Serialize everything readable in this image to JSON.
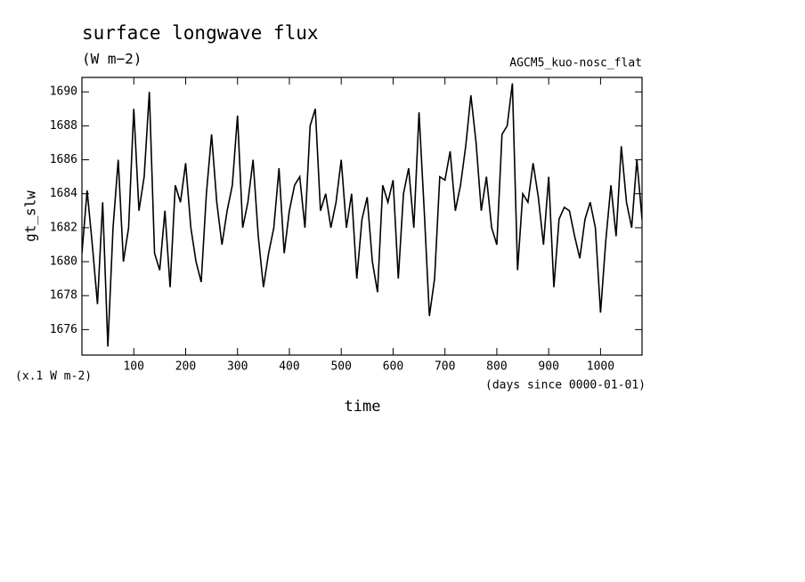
{
  "chart_data": {
    "type": "line",
    "title": "surface longwave flux",
    "subtitle": "(W m−2)",
    "annotation": "AGCM5_kuo-nosc_flat",
    "y_label": "gt_slw",
    "y_unit": "(x.1 W m-2)",
    "x_label": "time",
    "x_unit": "(days since 0000-01-01)",
    "color": "#000000",
    "xlim": [
      0,
      1080
    ],
    "ylim": [
      1674.5,
      1690.85
    ],
    "xticks": [
      100,
      200,
      300,
      400,
      500,
      600,
      700,
      800,
      900,
      1000
    ],
    "yticks": [
      1676,
      1678,
      1680,
      1682,
      1684,
      1686,
      1688,
      1690
    ],
    "x": [
      0,
      10,
      20,
      30,
      40,
      50,
      60,
      70,
      80,
      90,
      100,
      110,
      120,
      130,
      140,
      150,
      160,
      170,
      180,
      190,
      200,
      210,
      220,
      230,
      240,
      250,
      260,
      270,
      280,
      290,
      300,
      310,
      320,
      330,
      340,
      350,
      360,
      370,
      380,
      390,
      400,
      410,
      420,
      430,
      440,
      450,
      460,
      470,
      480,
      490,
      500,
      510,
      520,
      530,
      540,
      550,
      560,
      570,
      580,
      590,
      600,
      610,
      620,
      630,
      640,
      650,
      660,
      670,
      680,
      690,
      700,
      710,
      720,
      730,
      740,
      750,
      760,
      770,
      780,
      790,
      800,
      810,
      820,
      830,
      840,
      850,
      860,
      870,
      880,
      890,
      900,
      910,
      920,
      930,
      940,
      950,
      960,
      970,
      980,
      990,
      1000,
      1010,
      1020,
      1030,
      1040,
      1050,
      1060,
      1070,
      1080
    ],
    "values": [
      1680.5,
      1684.2,
      1681,
      1677.5,
      1683.5,
      1675,
      1682,
      1686,
      1680,
      1682,
      1689,
      1683,
      1685,
      1690,
      1680.5,
      1679.5,
      1683,
      1678.5,
      1684.5,
      1683.5,
      1685.8,
      1682,
      1680,
      1678.8,
      1684,
      1687.5,
      1683.5,
      1681,
      1683,
      1684.5,
      1688.6,
      1682,
      1683.5,
      1686,
      1681.5,
      1678.5,
      1680.5,
      1682,
      1685.5,
      1680.5,
      1683,
      1684.5,
      1685,
      1682,
      1688,
      1689,
      1683,
      1684,
      1682,
      1683.5,
      1686,
      1682,
      1684,
      1679,
      1682.5,
      1683.8,
      1680,
      1678.2,
      1684.5,
      1683.5,
      1684.8,
      1679,
      1684,
      1685.5,
      1682,
      1688.8,
      1683,
      1676.8,
      1679,
      1685,
      1684.8,
      1686.5,
      1683,
      1684.5,
      1686.8,
      1689.8,
      1687,
      1683,
      1685,
      1682,
      1681,
      1687.5,
      1688,
      1690.5,
      1679.5,
      1684,
      1683.5,
      1685.8,
      1683.8,
      1681,
      1685,
      1678.5,
      1682.5,
      1683.2,
      1683,
      1681.5,
      1680.2,
      1682.5,
      1683.5,
      1682,
      1677,
      1681.2,
      1684.5,
      1681.5,
      1686.8,
      1683.5,
      1682,
      1686,
      1682.5
    ]
  }
}
